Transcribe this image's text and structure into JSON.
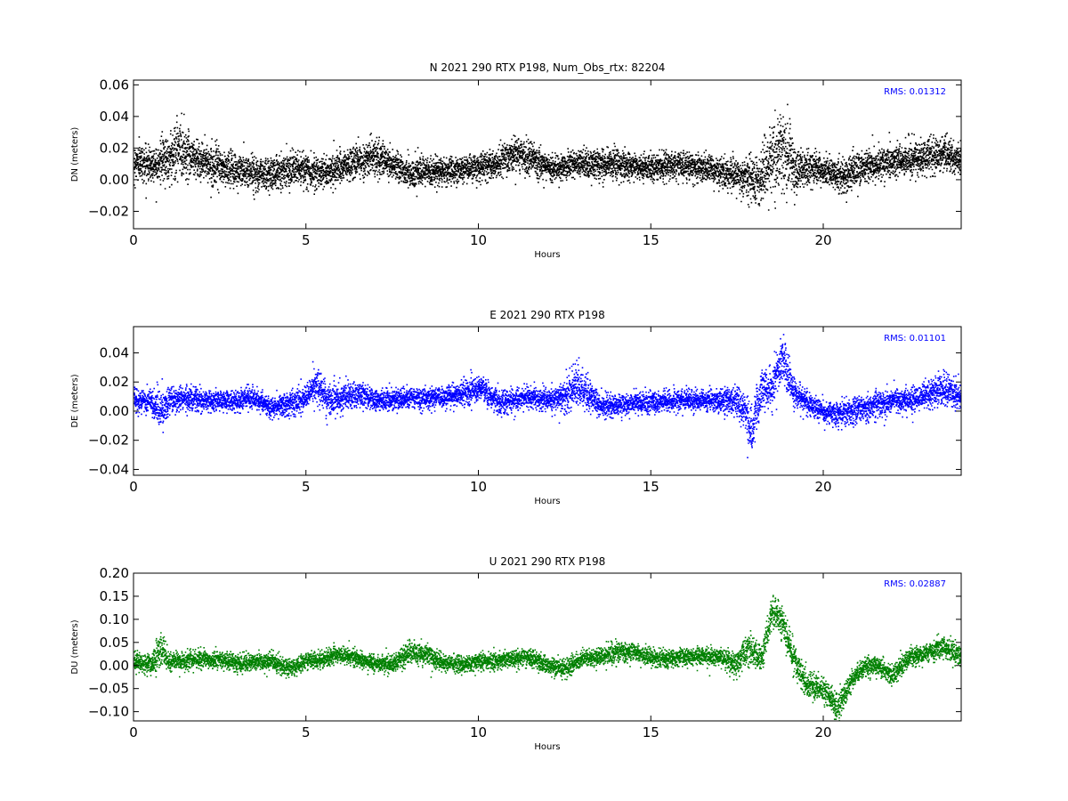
{
  "chart_data": [
    {
      "type": "scatter",
      "title": "N 2021 290 RTX  P198, Num_Obs_rtx: 82204",
      "xlabel": "Hours",
      "ylabel": "DN (meters)",
      "xlim": [
        0,
        24
      ],
      "ylim": [
        -0.031,
        0.063
      ],
      "xticks": [
        0,
        5,
        10,
        15,
        20
      ],
      "xtick_labels": [
        "0",
        "5",
        "10",
        "15",
        "20"
      ],
      "yticks": [
        -0.02,
        0.0,
        0.02,
        0.04,
        0.06
      ],
      "ytick_labels": [
        "−0.02",
        "0.00",
        "0.02",
        "0.04",
        "0.06"
      ],
      "annotation": "RMS:  0.01312",
      "annotation_color": "#0000ff",
      "grid": false,
      "series": [
        {
          "color": "#000000",
          "x": [
            0,
            0.5,
            1.0,
            1.3,
            1.6,
            2.0,
            2.5,
            3.0,
            3.5,
            4.0,
            4.5,
            5.0,
            5.5,
            6.0,
            6.5,
            7.0,
            7.5,
            8.0,
            8.5,
            9.0,
            9.5,
            10.0,
            10.5,
            11.0,
            11.5,
            12.0,
            12.5,
            13.0,
            13.5,
            14.0,
            14.5,
            15.0,
            15.5,
            16.0,
            16.5,
            17.0,
            17.5,
            17.8,
            18.1,
            18.4,
            18.8,
            19.2,
            19.6,
            20.0,
            20.5,
            21.0,
            21.5,
            22.0,
            22.5,
            23.0,
            23.5,
            24.0
          ],
          "center": [
            0.012,
            0.01,
            0.014,
            0.02,
            0.016,
            0.012,
            0.008,
            0.006,
            0.005,
            0.004,
            0.008,
            0.006,
            0.005,
            0.008,
            0.012,
            0.015,
            0.01,
            0.004,
            0.005,
            0.006,
            0.007,
            0.008,
            0.01,
            0.016,
            0.014,
            0.008,
            0.009,
            0.01,
            0.01,
            0.01,
            0.009,
            0.008,
            0.01,
            0.009,
            0.008,
            0.006,
            0.003,
            0.002,
            0.0,
            0.01,
            0.02,
            0.006,
            0.008,
            0.006,
            0.002,
            0.008,
            0.01,
            0.012,
            0.013,
            0.015,
            0.016,
            0.012
          ],
          "spread": [
            0.012,
            0.012,
            0.016,
            0.022,
            0.016,
            0.012,
            0.012,
            0.012,
            0.012,
            0.011,
            0.011,
            0.011,
            0.011,
            0.011,
            0.012,
            0.012,
            0.01,
            0.01,
            0.01,
            0.009,
            0.009,
            0.009,
            0.01,
            0.012,
            0.011,
            0.009,
            0.009,
            0.01,
            0.01,
            0.01,
            0.009,
            0.009,
            0.009,
            0.009,
            0.009,
            0.01,
            0.012,
            0.014,
            0.02,
            0.018,
            0.03,
            0.016,
            0.011,
            0.01,
            0.012,
            0.012,
            0.011,
            0.011,
            0.011,
            0.011,
            0.011,
            0.01
          ]
        }
      ]
    },
    {
      "type": "scatter",
      "title": "E 2021 290 RTX  P198",
      "xlabel": "Hours",
      "ylabel": "DE (meters)",
      "xlim": [
        0,
        24
      ],
      "ylim": [
        -0.044,
        0.058
      ],
      "xticks": [
        0,
        5,
        10,
        15,
        20
      ],
      "xtick_labels": [
        "0",
        "5",
        "10",
        "15",
        "20"
      ],
      "yticks": [
        -0.04,
        -0.02,
        0.0,
        0.02,
        0.04
      ],
      "ytick_labels": [
        "−0.04",
        "−0.02",
        "0.00",
        "0.02",
        "0.04"
      ],
      "annotation": "RMS:  0.01101",
      "annotation_color": "#0000ff",
      "grid": false,
      "series": [
        {
          "color": "#0000ff",
          "x": [
            0,
            0.5,
            0.8,
            1.0,
            1.5,
            2.0,
            2.5,
            3.0,
            3.5,
            4.0,
            4.5,
            5.0,
            5.3,
            5.6,
            6.0,
            6.5,
            7.0,
            7.5,
            8.0,
            8.5,
            9.0,
            9.5,
            10.0,
            10.5,
            11.0,
            11.5,
            12.0,
            12.5,
            12.8,
            13.2,
            13.5,
            14.0,
            14.5,
            15.0,
            15.5,
            16.0,
            16.5,
            17.0,
            17.4,
            17.7,
            17.9,
            18.2,
            18.5,
            18.8,
            19.1,
            19.5,
            20.0,
            20.5,
            21.0,
            21.5,
            22.0,
            22.5,
            23.0,
            23.5,
            24.0
          ],
          "center": [
            0.008,
            0.007,
            0.0,
            0.008,
            0.01,
            0.008,
            0.007,
            0.008,
            0.009,
            0.003,
            0.005,
            0.01,
            0.018,
            0.008,
            0.01,
            0.012,
            0.008,
            0.008,
            0.01,
            0.009,
            0.01,
            0.012,
            0.016,
            0.008,
            0.008,
            0.01,
            0.008,
            0.01,
            0.02,
            0.01,
            0.004,
            0.004,
            0.006,
            0.006,
            0.007,
            0.008,
            0.008,
            0.008,
            0.006,
            0.004,
            -0.015,
            0.016,
            0.016,
            0.038,
            0.015,
            0.006,
            0.0,
            -0.002,
            0.002,
            0.005,
            0.008,
            0.008,
            0.012,
            0.016,
            0.01
          ],
          "spread": [
            0.008,
            0.008,
            0.018,
            0.01,
            0.009,
            0.008,
            0.008,
            0.008,
            0.008,
            0.008,
            0.009,
            0.01,
            0.012,
            0.012,
            0.01,
            0.01,
            0.008,
            0.008,
            0.008,
            0.008,
            0.008,
            0.009,
            0.01,
            0.009,
            0.008,
            0.008,
            0.009,
            0.012,
            0.016,
            0.012,
            0.009,
            0.008,
            0.008,
            0.008,
            0.008,
            0.008,
            0.008,
            0.01,
            0.012,
            0.014,
            0.02,
            0.016,
            0.016,
            0.018,
            0.012,
            0.009,
            0.008,
            0.01,
            0.01,
            0.01,
            0.01,
            0.009,
            0.01,
            0.012,
            0.01
          ]
        }
      ]
    },
    {
      "type": "scatter",
      "title": "U 2021 290 RTX  P198",
      "xlabel": "Hours",
      "ylabel": "DU (meters)",
      "xlim": [
        0,
        24
      ],
      "ylim": [
        -0.12,
        0.2
      ],
      "xticks": [
        0,
        5,
        10,
        15,
        20
      ],
      "xtick_labels": [
        "0",
        "5",
        "10",
        "15",
        "20"
      ],
      "yticks": [
        -0.1,
        -0.05,
        0.0,
        0.05,
        0.1,
        0.15,
        0.2
      ],
      "ytick_labels": [
        "−0.10",
        "−0.05",
        "0.00",
        "0.05",
        "0.10",
        "0.15",
        "0.20"
      ],
      "annotation": "RMS:  0.02887",
      "annotation_color": "#0000ff",
      "grid": false,
      "series": [
        {
          "color": "#008000",
          "x": [
            0,
            0.5,
            0.8,
            1.0,
            1.5,
            2.0,
            2.5,
            3.0,
            3.5,
            4.0,
            4.5,
            5.0,
            5.5,
            6.0,
            6.5,
            7.0,
            7.5,
            8.0,
            8.5,
            9.0,
            9.5,
            10.0,
            10.5,
            11.0,
            11.5,
            12.0,
            12.5,
            13.0,
            13.5,
            14.0,
            14.5,
            15.0,
            15.5,
            16.0,
            16.5,
            17.0,
            17.4,
            17.8,
            18.2,
            18.5,
            18.8,
            19.1,
            19.5,
            20.0,
            20.4,
            20.8,
            21.2,
            21.6,
            22.0,
            22.5,
            23.0,
            23.5,
            24.0
          ],
          "center": [
            0.01,
            0.005,
            0.04,
            0.01,
            0.01,
            0.015,
            0.012,
            0.005,
            0.01,
            0.01,
            -0.005,
            0.01,
            0.015,
            0.025,
            0.015,
            0.005,
            0.005,
            0.03,
            0.025,
            0.005,
            0.005,
            0.01,
            0.012,
            0.015,
            0.02,
            0.0,
            -0.005,
            0.015,
            0.02,
            0.03,
            0.03,
            0.02,
            0.015,
            0.02,
            0.02,
            0.02,
            0.0,
            0.04,
            0.01,
            0.12,
            0.1,
            0.02,
            -0.04,
            -0.05,
            -0.09,
            -0.03,
            0.0,
            0.0,
            -0.02,
            0.02,
            0.03,
            0.04,
            0.02
          ],
          "spread": [
            0.025,
            0.022,
            0.05,
            0.022,
            0.02,
            0.02,
            0.02,
            0.02,
            0.02,
            0.02,
            0.02,
            0.02,
            0.022,
            0.022,
            0.02,
            0.02,
            0.02,
            0.025,
            0.025,
            0.02,
            0.02,
            0.02,
            0.02,
            0.02,
            0.022,
            0.022,
            0.02,
            0.02,
            0.022,
            0.025,
            0.022,
            0.02,
            0.02,
            0.02,
            0.022,
            0.022,
            0.03,
            0.04,
            0.03,
            0.04,
            0.04,
            0.04,
            0.03,
            0.03,
            0.03,
            0.025,
            0.022,
            0.022,
            0.022,
            0.022,
            0.022,
            0.025,
            0.025
          ]
        }
      ]
    }
  ]
}
